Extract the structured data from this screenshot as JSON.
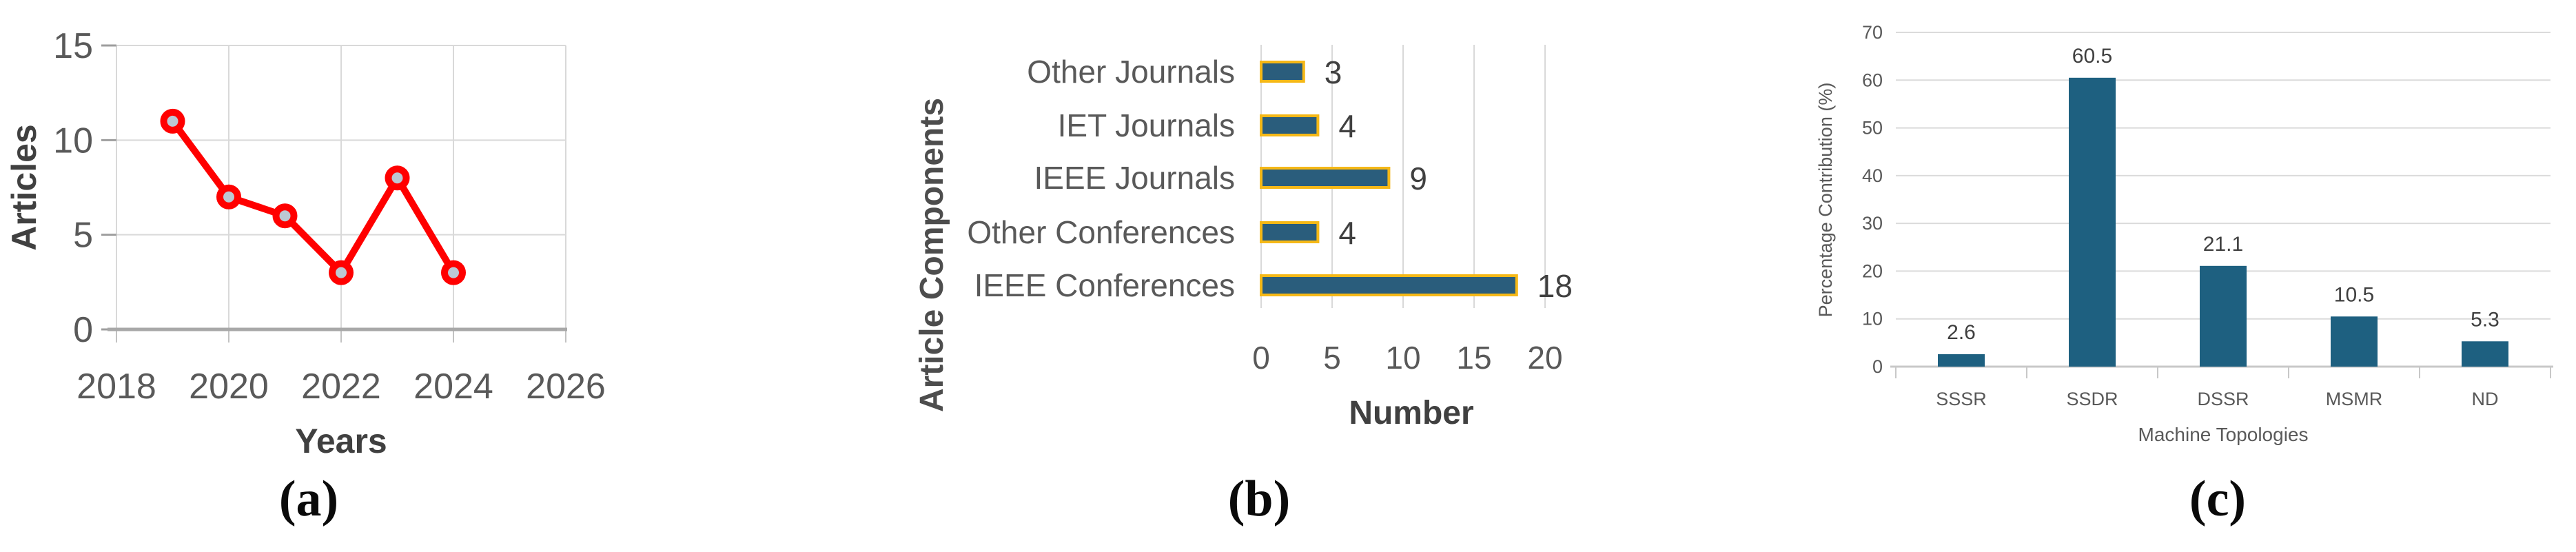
{
  "figure": {
    "background": "#ffffff",
    "captions": {
      "a": "(a)",
      "b": "(b)",
      "c": "(c)"
    }
  },
  "colors": {
    "line_red": "#FF0000",
    "marker_fill": "#BCC8D4",
    "bar_teal_b": "#2A5D7C",
    "bar_gold_border": "#F5B817",
    "bar_teal_c": "#1E6080",
    "gridline": "#D9D9D9",
    "axis_line": "#A8A8A8",
    "axis_line_light": "#C8C8C8",
    "tick_text": "#595959",
    "title_text": "#404040",
    "data_label_text": "#3F3F3F"
  },
  "chart_data": [
    {
      "id": "a",
      "type": "line",
      "caption": "(a)",
      "xlabel": "Years",
      "ylabel": "Articles",
      "x": [
        2019,
        2020,
        2021,
        2022,
        2023,
        2024
      ],
      "y": [
        11,
        7,
        6,
        3,
        8,
        3
      ],
      "xticks": [
        2018,
        2020,
        2022,
        2024,
        2026
      ],
      "yticks": [
        0,
        5,
        10,
        15
      ],
      "xlim": [
        2018,
        2026
      ],
      "ylim": [
        0,
        15
      ],
      "grid": true,
      "legend": "none",
      "line_color": "#FF0000",
      "marker": "circle",
      "marker_fill": "#BCC8D4"
    },
    {
      "id": "b",
      "type": "bar",
      "orientation": "horizontal",
      "caption": "(b)",
      "xlabel": "Number",
      "ylabel": "Article Components",
      "categories": [
        "Other Journals",
        "IET Journals",
        "IEEE Journals",
        "Other Conferences",
        "IEEE Conferences"
      ],
      "values": [
        3,
        4,
        9,
        4,
        18
      ],
      "value_labels": [
        "3",
        "4",
        "9",
        "4",
        "18"
      ],
      "xticks": [
        0,
        5,
        10,
        15,
        20
      ],
      "xlim": [
        0,
        20
      ],
      "grid": true,
      "legend": "none",
      "bar_color": "#2A5D7C",
      "bar_border_color": "#F5B817"
    },
    {
      "id": "c",
      "type": "bar",
      "orientation": "vertical",
      "caption": "(c)",
      "xlabel": "Machine Topologies",
      "ylabel": "Percentage Contribution (%)",
      "categories": [
        "SSSR",
        "SSDR",
        "DSSR",
        "MSMR",
        "ND"
      ],
      "values": [
        2.6,
        60.5,
        21.1,
        10.5,
        5.3
      ],
      "value_labels": [
        "2.6",
        "60.5",
        "21.1",
        "10.5",
        "5.3"
      ],
      "yticks": [
        0,
        10,
        20,
        30,
        40,
        50,
        60,
        70
      ],
      "ylim": [
        0,
        70
      ],
      "grid": true,
      "legend": "none",
      "bar_color": "#1E6080"
    }
  ]
}
